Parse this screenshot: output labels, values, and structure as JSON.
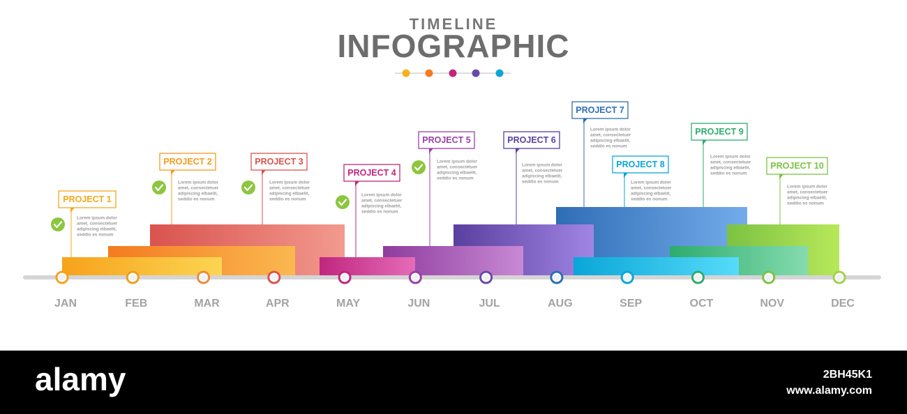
{
  "header": {
    "title": "TIMELINE",
    "subtitle": "INFOGRAPHIC"
  },
  "months": [
    "JAN",
    "FEB",
    "MAR",
    "APR",
    "MAY",
    "JUN",
    "JUL",
    "AUG",
    "SEP",
    "OCT",
    "NOV",
    "DEC"
  ],
  "projects": [
    {
      "label": "PROJECT 1",
      "description": [
        "Lorem ipsum dolor",
        "amet, consectetuer",
        "adipiscing elbaelit,",
        "seddio es nonum"
      ]
    },
    {
      "label": "PROJECT 2",
      "description": [
        "Lorem ipsum dolor",
        "amet, consectetuer",
        "adipiscing elbaelit,",
        "seddio es nonum"
      ]
    },
    {
      "label": "PROJECT 3",
      "description": [
        "Lorem ipsum dolor",
        "amet, consectetuer",
        "adipiscing elbaelit,",
        "seddio es nonum"
      ]
    },
    {
      "label": "PROJECT 4",
      "description": [
        "Lorem ipsum dolor",
        "amet, consectetuer",
        "adipiscing elbaelit,",
        "seddio es nonum"
      ]
    },
    {
      "label": "PROJECT 5",
      "description": [
        "Lorem ipsum dolor",
        "amet, consectetuer",
        "adipiscing elbaelit,",
        "seddio es nonum"
      ]
    },
    {
      "label": "PROJECT 6",
      "description": [
        "Lorem ipsum dolor",
        "amet, consectetuer",
        "adipiscing elbaelit,",
        "seddio es nonum"
      ]
    },
    {
      "label": "PROJECT 7",
      "description": [
        "Lorem ipsum dolor",
        "amet, consectetuer",
        "adipiscing elbaelit,",
        "seddio es nonum"
      ]
    },
    {
      "label": "PROJECT 8",
      "description": [
        "Lorem ipsum dolor",
        "amet, consectetuer",
        "adipiscing elbaelit,",
        "seddio es nonum"
      ]
    },
    {
      "label": "PROJECT 9",
      "description": [
        "Lorem ipsum dolor",
        "amet, consectetuer",
        "adipiscing elbaelit,",
        "seddio es nonum"
      ]
    },
    {
      "label": "PROJECT 10",
      "description": [
        "Lorem ipsum dolor",
        "amet, consectetuer",
        "adipiscing elbaelit,",
        "seddio es nonum"
      ]
    }
  ],
  "footer": {
    "brand": "alamy",
    "image_id": "2BH45K1",
    "url": "www.alamy.com"
  }
}
